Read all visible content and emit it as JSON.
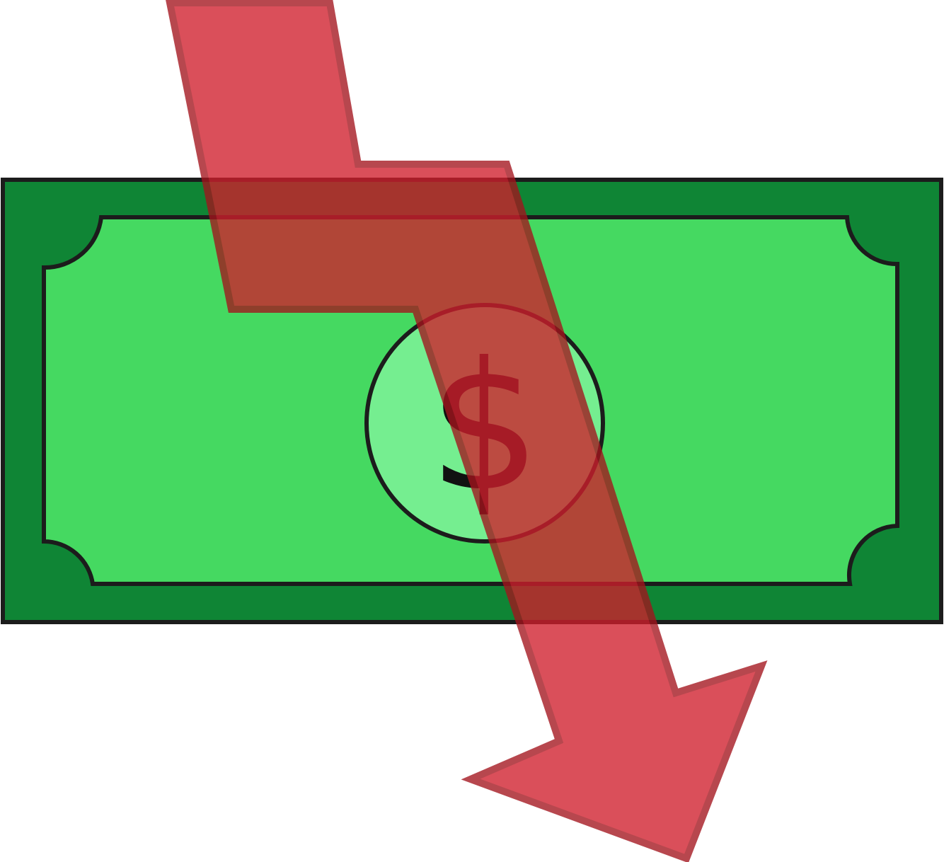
{
  "banknote": {
    "symbol": "$",
    "colors": {
      "outer": "#0f8535",
      "inner": "#45d961",
      "medallion": "#75ee90",
      "outline": "#1c1c1c"
    }
  },
  "decline_arrow": {
    "color": "#d44750",
    "opacity": 0.78
  }
}
